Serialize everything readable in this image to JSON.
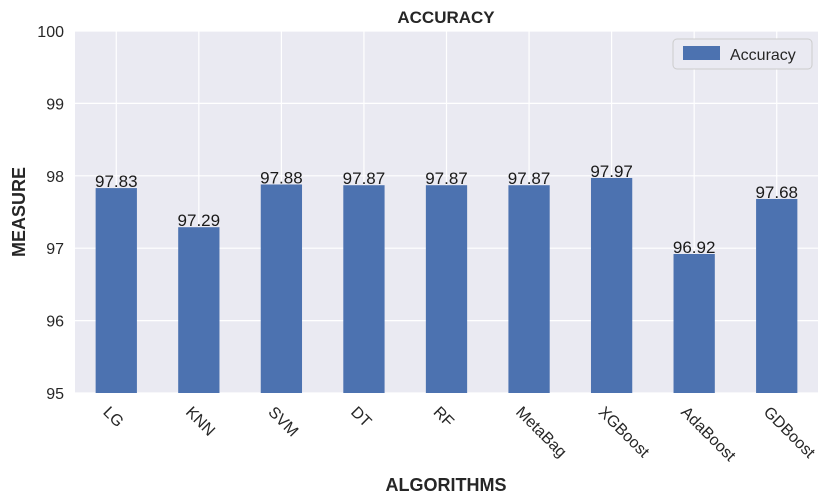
{
  "chart_data": {
    "type": "bar",
    "title": "ACCURACY",
    "xlabel": "ALGORITHMS",
    "ylabel": "MEASURE",
    "categories": [
      "LG",
      "KNN",
      "SVM",
      "DT",
      "RF",
      "MetaBag",
      "XGBoost",
      "AdaBoost",
      "GDBoost"
    ],
    "series": [
      {
        "name": "Accuracy",
        "values": [
          97.83,
          97.29,
          97.88,
          97.87,
          97.87,
          97.87,
          97.97,
          96.92,
          97.68
        ],
        "labels": [
          "97.83",
          "97.29",
          "97.88",
          "97.87",
          "97.87",
          "97.87",
          "97.97",
          "96.92",
          "97.68"
        ]
      }
    ],
    "ylim": [
      95,
      100
    ],
    "yticks": [
      "95",
      "96",
      "97",
      "98",
      "99",
      "100"
    ],
    "grid": true,
    "legend_position": "top-right",
    "colors": {
      "bar": "#4c72b0",
      "plot_bg": "#eaeaf2",
      "grid": "#ffffff"
    }
  }
}
